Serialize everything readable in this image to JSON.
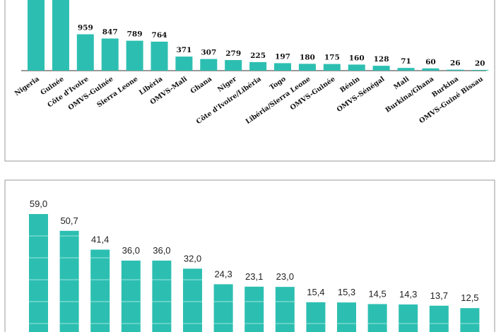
{
  "colors": {
    "bar": "#2cbfb1",
    "border": "#9a9a9a",
    "gridline": "#a0e6dd"
  },
  "chart_data": [
    {
      "type": "bar",
      "categories": [
        "Nigeria",
        "Guinée",
        "Côte d'Ivoire",
        "OMVS-Guinée",
        "Sierra Leone",
        "Libéria",
        "OMVS-Mali",
        "Ghana",
        "Niger",
        "Côte d'Ivoire/Libéria",
        "Togo",
        "Libéria/Sierra Leone",
        "OMVS-Guinée",
        "Bénin",
        "OMVS-Sénégal",
        "Mali",
        "Burkina/Ghana",
        "Burkina",
        "OMVS-Guiné Bissau"
      ],
      "values": [
        null,
        null,
        959,
        847,
        789,
        764,
        371,
        307,
        279,
        225,
        197,
        180,
        175,
        160,
        128,
        71,
        60,
        26,
        20
      ],
      "labels": [
        "",
        "",
        "959",
        "847",
        "789",
        "764",
        "371",
        "307",
        "279",
        "225",
        "197",
        "180",
        "175",
        "160",
        "128",
        "71",
        "60",
        "26",
        "20"
      ],
      "title": "",
      "xlabel": "",
      "ylabel": "",
      "ylim": [
        0,
        1900
      ]
    },
    {
      "type": "bar",
      "values": [
        59.0,
        50.7,
        41.4,
        36.0,
        36.0,
        32.0,
        24.3,
        23.1,
        23.0,
        15.4,
        15.3,
        14.5,
        14.3,
        13.7,
        12.5
      ],
      "labels": [
        "59,0",
        "50,7",
        "41,4",
        "36,0",
        "36,0",
        "32,0",
        "24,3",
        "23,1",
        "23,0",
        "15,4",
        "15,3",
        "14,5",
        "14,3",
        "13,7",
        "12,5"
      ],
      "title": "",
      "xlabel": "",
      "ylabel": "",
      "ylim": [
        0,
        64
      ]
    }
  ]
}
